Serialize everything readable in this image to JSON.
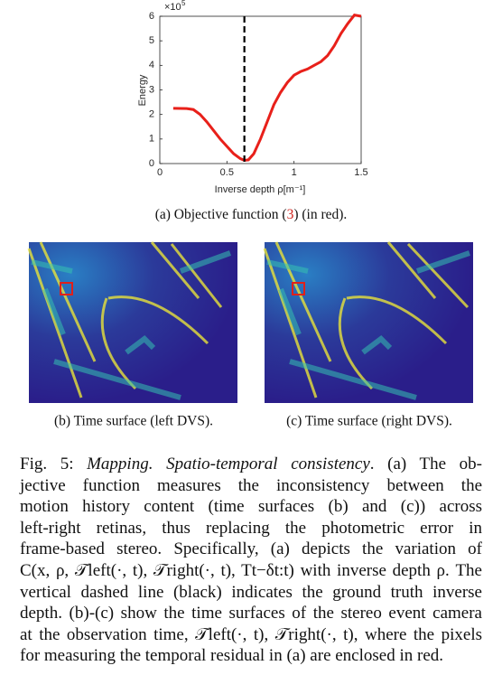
{
  "chart_data": {
    "type": "line",
    "x_label": "Inverse depth  ρ[m⁻¹]",
    "y_label": "Energy",
    "y_multiplier": "×10",
    "y_multiplier_exponent": "5",
    "x": [
      0.1,
      0.2,
      0.25,
      0.3,
      0.35,
      0.4,
      0.45,
      0.5,
      0.55,
      0.6,
      0.63,
      0.66,
      0.7,
      0.75,
      0.8,
      0.85,
      0.9,
      0.95,
      1.0,
      1.05,
      1.1,
      1.15,
      1.2,
      1.25,
      1.3,
      1.35,
      1.4,
      1.45,
      1.5
    ],
    "values": [
      2.25,
      2.24,
      2.2,
      2.0,
      1.7,
      1.35,
      1.0,
      0.7,
      0.4,
      0.2,
      0.13,
      0.15,
      0.4,
      1.0,
      1.7,
      2.4,
      2.9,
      3.3,
      3.6,
      3.75,
      3.85,
      4.0,
      4.15,
      4.4,
      4.8,
      5.3,
      5.7,
      6.05,
      6.0
    ],
    "color": "#e8201a",
    "ground_truth": 0.63,
    "xlim": [
      0,
      1.5
    ],
    "ylim": [
      0,
      6
    ],
    "xticks": [
      0,
      0.5,
      1,
      1.5
    ],
    "yticks": [
      0,
      1,
      2,
      3,
      4,
      5,
      6
    ]
  },
  "captions": {
    "a": [
      "(a) Objective function (",
      "3",
      ") (in red)."
    ],
    "b": "(b) Time surface (left DVS).",
    "c": "(c) Time surface (right DVS)."
  },
  "figure_caption": {
    "label": "Fig. 5: ",
    "emphasis": "Mapping. Spatio-temporal consistency",
    "first_rest": ". (a) The ob-",
    "lines": [
      "jective function measures the inconsistency between the",
      "motion history content (time surfaces (b) and (c)) across",
      "left-right retinas, thus replacing the photometric error in",
      "frame-based stereo. Specifically, (a) depicts the variation of",
      "C(x, ρ, 𝒯left(·, t), 𝒯right(·, t), Tt−δt:t) with inverse depth ρ. The",
      "vertical dashed line (black) indicates the ground truth inverse",
      "depth. (b)-(c) show the time surfaces of the stereo event camera",
      "at the observation time, 𝒯left(·, t), 𝒯right(·, t), where the pixels",
      "for measuring the temporal residual in (a) are enclosed in red."
    ]
  }
}
